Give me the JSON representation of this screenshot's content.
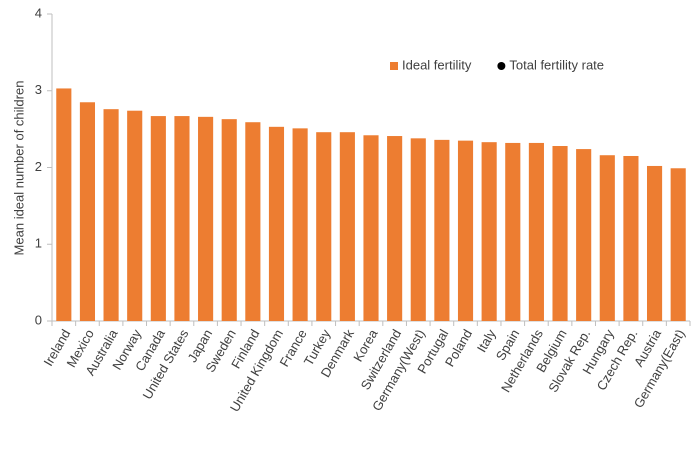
{
  "chart_data": {
    "type": "bar",
    "y_label": "Mean ideal number of children",
    "categories": [
      "Ireland",
      "Mexico",
      "Australia",
      "Norway",
      "Canada",
      "United States",
      "Japan",
      "Sweden",
      "Finland",
      "United Kingdom",
      "France",
      "Turkey",
      "Denmark",
      "Korea",
      "Switzerland",
      "Germany(West)",
      "Portugal",
      "Poland",
      "Italy",
      "Spain",
      "Netherlands",
      "Belgium",
      "Slovak Rep.",
      "Hungary",
      "Czech Rep.",
      "Austria",
      "Germany(East)"
    ],
    "series": [
      {
        "name": "Ideal fertility",
        "type": "bar",
        "color": "#ed7d31",
        "values": [
          3.03,
          2.85,
          2.76,
          2.74,
          2.67,
          2.67,
          2.66,
          2.63,
          2.59,
          2.53,
          2.51,
          2.46,
          2.46,
          2.42,
          2.41,
          2.38,
          2.36,
          2.35,
          2.33,
          2.32,
          2.32,
          2.28,
          2.24,
          2.16,
          2.15,
          2.02,
          1.99
        ]
      },
      {
        "name": "Total fertility rate",
        "type": "scatter",
        "color": "#000000",
        "values": [
          null,
          null,
          null,
          null,
          null,
          null,
          null,
          null,
          null,
          null,
          null,
          null,
          null,
          null,
          null,
          null,
          null,
          null,
          null,
          null,
          null,
          null,
          null,
          null,
          null,
          null,
          null
        ]
      }
    ],
    "ylim": [
      0,
      4
    ],
    "yticks": [
      0,
      1,
      2,
      3,
      4
    ],
    "grid": false,
    "legend": "top-right"
  }
}
